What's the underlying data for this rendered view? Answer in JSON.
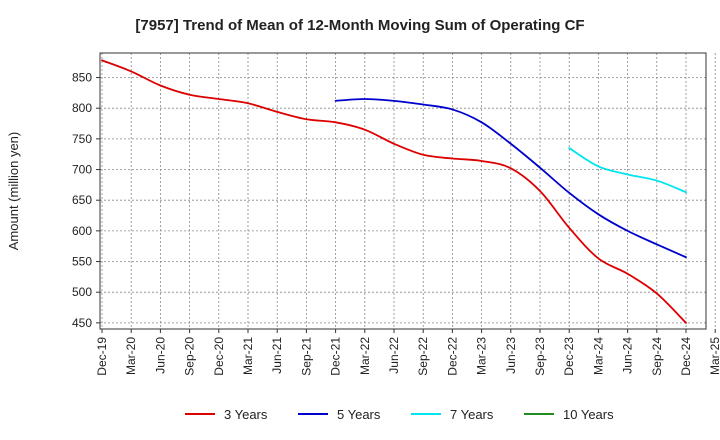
{
  "chart_data": {
    "type": "line",
    "title": "[7957]  Trend of Mean of 12-Month Moving Sum of Operating CF",
    "ylabel": "Amount (million yen)",
    "xlabel": "",
    "ylim": [
      440,
      890
    ],
    "yticks": [
      450,
      500,
      550,
      600,
      650,
      700,
      750,
      800,
      850
    ],
    "x_tick_labels": [
      "Dec-19",
      "Mar-20",
      "Jun-20",
      "Sep-20",
      "Dec-20",
      "Mar-21",
      "Jun-21",
      "Sep-21",
      "Dec-21",
      "Mar-22",
      "Jun-22",
      "Sep-22",
      "Dec-22",
      "Mar-23",
      "Jun-23",
      "Sep-23",
      "Dec-23",
      "Mar-24",
      "Jun-24",
      "Sep-24",
      "Dec-24",
      "Mar-25"
    ],
    "grid": true,
    "legend_position": "bottom",
    "series": [
      {
        "name": "3 Years",
        "color": "#dd0000",
        "points": [
          [
            0,
            878
          ],
          [
            1,
            860
          ],
          [
            2,
            837
          ],
          [
            3,
            822
          ],
          [
            4,
            815
          ],
          [
            5,
            808
          ],
          [
            6,
            794
          ],
          [
            7,
            782
          ],
          [
            8,
            777
          ],
          [
            9,
            765
          ],
          [
            10,
            742
          ],
          [
            11,
            724
          ],
          [
            12,
            718
          ],
          [
            13,
            714
          ],
          [
            14,
            702
          ],
          [
            15,
            665
          ],
          [
            16,
            605
          ],
          [
            17,
            555
          ],
          [
            18,
            530
          ],
          [
            19,
            498
          ],
          [
            20,
            450
          ]
        ]
      },
      {
        "name": "5 Years",
        "color": "#0000cc",
        "points": [
          [
            8,
            812
          ],
          [
            9,
            815
          ],
          [
            10,
            812
          ],
          [
            11,
            806
          ],
          [
            12,
            798
          ],
          [
            13,
            777
          ],
          [
            14,
            742
          ],
          [
            15,
            703
          ],
          [
            16,
            662
          ],
          [
            17,
            627
          ],
          [
            18,
            600
          ],
          [
            19,
            578
          ],
          [
            20,
            557
          ]
        ]
      },
      {
        "name": "7 Years",
        "color": "#00e5ee",
        "points": [
          [
            16,
            735
          ],
          [
            17,
            705
          ],
          [
            18,
            692
          ],
          [
            19,
            682
          ],
          [
            20,
            663
          ]
        ]
      },
      {
        "name": "10 Years",
        "color": "#228b22",
        "points": []
      }
    ]
  }
}
